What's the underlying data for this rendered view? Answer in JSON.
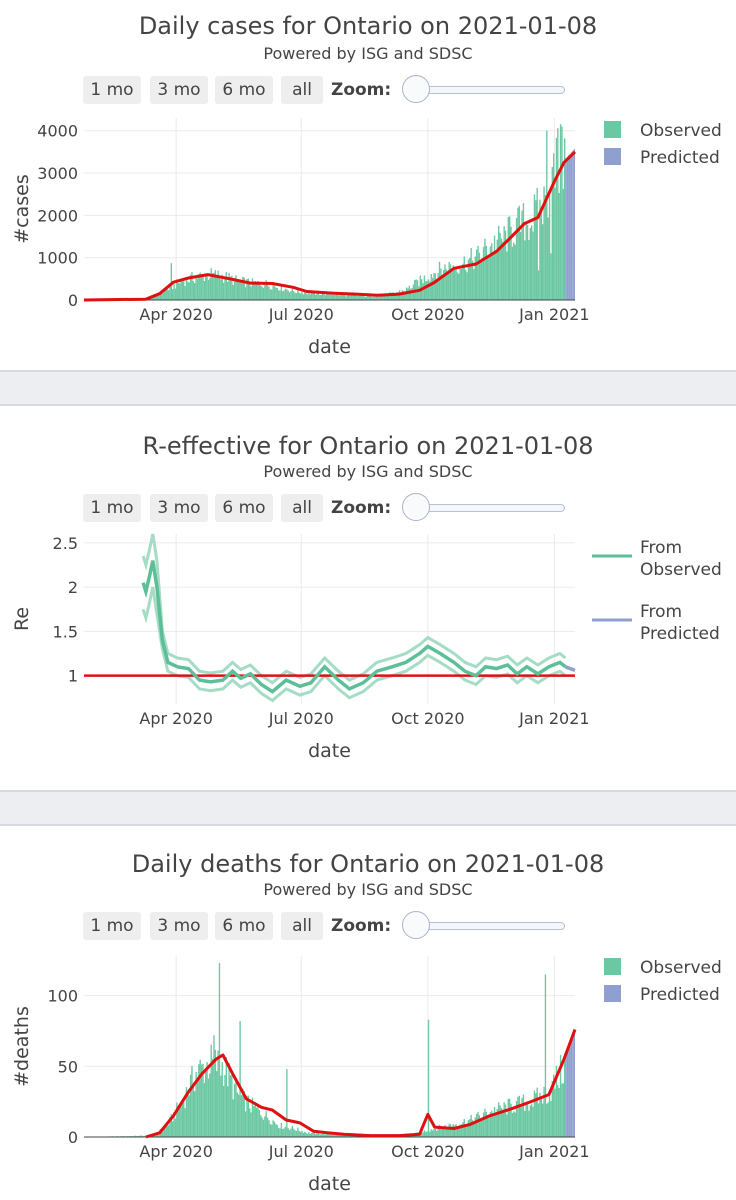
{
  "range_buttons": [
    "1 mo",
    "3 mo",
    "6 mo",
    "all"
  ],
  "zoom_label": "Zoom:",
  "subtitle": "Powered by ISG and SDSC",
  "colors": {
    "observed": "#6cc8a3",
    "predicted": "#8f9fcf",
    "fit": "#e01010",
    "re_line": "#5cbf97",
    "re_band": "#a4dcc4"
  },
  "chart_data": [
    {
      "type": "bar",
      "title": "Daily cases for Ontario on 2021-01-08",
      "xlabel": "date",
      "ylabel": "#cases",
      "x_ticks": [
        "Apr 2020",
        "Jul 2020",
        "Oct 2020",
        "Jan 2021"
      ],
      "y_ticks": [
        0,
        1000,
        2000,
        3000,
        4000
      ],
      "ylim": [
        0,
        4300
      ],
      "x_start": "2020-01-25",
      "x_end": "2021-01-16",
      "legend": [
        "Observed",
        "Predicted"
      ],
      "legend_position": "top-right",
      "observed_trend": [
        [
          "2020-01-25",
          0
        ],
        [
          "2020-03-01",
          5
        ],
        [
          "2020-03-15",
          60
        ],
        [
          "2020-03-25",
          250
        ],
        [
          "2020-04-05",
          450
        ],
        [
          "2020-04-15",
          540
        ],
        [
          "2020-04-25",
          600
        ],
        [
          "2020-05-05",
          560
        ],
        [
          "2020-05-15",
          450
        ],
        [
          "2020-05-25",
          400
        ],
        [
          "2020-06-05",
          380
        ],
        [
          "2020-06-15",
          300
        ],
        [
          "2020-06-25",
          210
        ],
        [
          "2020-07-05",
          170
        ],
        [
          "2020-07-15",
          150
        ],
        [
          "2020-07-25",
          140
        ],
        [
          "2020-08-05",
          110
        ],
        [
          "2020-08-15",
          90
        ],
        [
          "2020-08-25",
          105
        ],
        [
          "2020-09-05",
          150
        ],
        [
          "2020-09-15",
          250
        ],
        [
          "2020-09-25",
          450
        ],
        [
          "2020-10-05",
          650
        ],
        [
          "2020-10-15",
          780
        ],
        [
          "2020-10-25",
          850
        ],
        [
          "2020-11-05",
          1000
        ],
        [
          "2020-11-15",
          1300
        ],
        [
          "2020-11-25",
          1450
        ],
        [
          "2020-12-05",
          1750
        ],
        [
          "2020-12-15",
          1900
        ],
        [
          "2020-12-25",
          2300
        ],
        [
          "2021-01-01",
          3000
        ],
        [
          "2021-01-08",
          3400
        ]
      ],
      "spikes": [
        [
          "2020-03-28",
          870
        ],
        [
          "2020-12-26",
          4000
        ],
        [
          "2021-01-03",
          4060
        ],
        [
          "2021-01-06",
          4100
        ]
      ],
      "dips": [
        [
          "2020-12-20",
          700
        ],
        [
          "2020-12-29",
          1100
        ]
      ],
      "predicted_from": "2021-01-09",
      "predicted_trend": [
        [
          "2021-01-09",
          3350
        ],
        [
          "2021-01-16",
          3600
        ]
      ],
      "fit_line": [
        [
          "2020-01-25",
          0
        ],
        [
          "2020-03-10",
          20
        ],
        [
          "2020-03-20",
          150
        ],
        [
          "2020-03-30",
          420
        ],
        [
          "2020-04-10",
          520
        ],
        [
          "2020-04-24",
          600
        ],
        [
          "2020-05-10",
          500
        ],
        [
          "2020-05-25",
          400
        ],
        [
          "2020-06-10",
          390
        ],
        [
          "2020-06-25",
          300
        ],
        [
          "2020-07-05",
          200
        ],
        [
          "2020-07-25",
          160
        ],
        [
          "2020-08-10",
          140
        ],
        [
          "2020-08-25",
          110
        ],
        [
          "2020-09-10",
          140
        ],
        [
          "2020-09-25",
          230
        ],
        [
          "2020-10-05",
          400
        ],
        [
          "2020-10-20",
          750
        ],
        [
          "2020-11-05",
          850
        ],
        [
          "2020-11-20",
          1150
        ],
        [
          "2020-12-01",
          1500
        ],
        [
          "2020-12-10",
          1800
        ],
        [
          "2020-12-20",
          1950
        ],
        [
          "2021-01-01",
          2800
        ],
        [
          "2021-01-08",
          3250
        ],
        [
          "2021-01-16",
          3500
        ]
      ]
    },
    {
      "type": "line",
      "title": "R-effective for Ontario on 2021-01-08",
      "xlabel": "date",
      "ylabel": "Re",
      "x_ticks": [
        "Apr 2020",
        "Jul 2020",
        "Oct 2020",
        "Jan 2021"
      ],
      "y_ticks": [
        1,
        1.5,
        2,
        2.5
      ],
      "ylim": [
        0.68,
        2.6
      ],
      "x_start": "2020-01-25",
      "x_end": "2021-01-16",
      "legend": [
        "From Observed",
        "From Predicted"
      ],
      "legend_position": "top-right",
      "reference_line": 1,
      "re_observed": [
        [
          "2020-03-08",
          2.05
        ],
        [
          "2020-03-10",
          1.95
        ],
        [
          "2020-03-13",
          2.15
        ],
        [
          "2020-03-15",
          2.3
        ],
        [
          "2020-03-18",
          2.0
        ],
        [
          "2020-03-22",
          1.4
        ],
        [
          "2020-03-26",
          1.15
        ],
        [
          "2020-04-02",
          1.1
        ],
        [
          "2020-04-10",
          1.08
        ],
        [
          "2020-04-18",
          0.95
        ],
        [
          "2020-04-26",
          0.93
        ],
        [
          "2020-05-05",
          0.95
        ],
        [
          "2020-05-12",
          1.05
        ],
        [
          "2020-05-18",
          0.97
        ],
        [
          "2020-05-25",
          1.02
        ],
        [
          "2020-06-02",
          0.9
        ],
        [
          "2020-06-10",
          0.82
        ],
        [
          "2020-06-20",
          0.95
        ],
        [
          "2020-06-30",
          0.88
        ],
        [
          "2020-07-08",
          0.92
        ],
        [
          "2020-07-18",
          1.1
        ],
        [
          "2020-07-28",
          0.95
        ],
        [
          "2020-08-05",
          0.85
        ],
        [
          "2020-08-15",
          0.92
        ],
        [
          "2020-08-25",
          1.05
        ],
        [
          "2020-09-05",
          1.1
        ],
        [
          "2020-09-15",
          1.15
        ],
        [
          "2020-09-25",
          1.25
        ],
        [
          "2020-10-01",
          1.33
        ],
        [
          "2020-10-10",
          1.25
        ],
        [
          "2020-10-20",
          1.15
        ],
        [
          "2020-10-28",
          1.05
        ],
        [
          "2020-11-05",
          1.0
        ],
        [
          "2020-11-12",
          1.1
        ],
        [
          "2020-11-20",
          1.08
        ],
        [
          "2020-11-28",
          1.12
        ],
        [
          "2020-12-05",
          1.02
        ],
        [
          "2020-12-12",
          1.1
        ],
        [
          "2020-12-20",
          1.02
        ],
        [
          "2020-12-28",
          1.1
        ],
        [
          "2021-01-05",
          1.15
        ],
        [
          "2021-01-09",
          1.1
        ]
      ],
      "re_band_width": 0.1,
      "re_predicted": [
        [
          "2021-01-09",
          1.1
        ],
        [
          "2021-01-16",
          1.06
        ]
      ]
    },
    {
      "type": "bar",
      "title": "Daily deaths for Ontario on 2021-01-08",
      "xlabel": "date",
      "ylabel": "#deaths",
      "x_ticks": [
        "Apr 2020",
        "Jul 2020",
        "Oct 2020",
        "Jan 2021"
      ],
      "y_ticks": [
        0,
        50,
        100
      ],
      "ylim": [
        0,
        128
      ],
      "x_start": "2020-01-25",
      "x_end": "2021-01-16",
      "legend": [
        "Observed",
        "Predicted"
      ],
      "legend_position": "top-right",
      "observed_trend": [
        [
          "2020-01-25",
          0
        ],
        [
          "2020-03-15",
          1
        ],
        [
          "2020-03-25",
          8
        ],
        [
          "2020-04-05",
          25
        ],
        [
          "2020-04-15",
          45
        ],
        [
          "2020-04-25",
          52
        ],
        [
          "2020-05-05",
          50
        ],
        [
          "2020-05-15",
          30
        ],
        [
          "2020-05-25",
          22
        ],
        [
          "2020-06-05",
          15
        ],
        [
          "2020-06-15",
          8
        ],
        [
          "2020-06-25",
          6
        ],
        [
          "2020-07-05",
          3
        ],
        [
          "2020-07-20",
          2
        ],
        [
          "2020-08-10",
          1
        ],
        [
          "2020-09-01",
          1
        ],
        [
          "2020-09-20",
          2
        ],
        [
          "2020-10-01",
          5
        ],
        [
          "2020-10-15",
          8
        ],
        [
          "2020-11-01",
          12
        ],
        [
          "2020-11-15",
          18
        ],
        [
          "2020-12-01",
          22
        ],
        [
          "2020-12-15",
          25
        ],
        [
          "2020-12-28",
          32
        ],
        [
          "2021-01-08",
          50
        ]
      ],
      "spikes": [
        [
          "2020-05-02",
          123
        ],
        [
          "2020-05-17",
          82
        ],
        [
          "2020-04-28",
          72
        ],
        [
          "2020-10-01",
          83
        ],
        [
          "2020-12-25",
          115
        ],
        [
          "2020-06-20",
          48
        ]
      ],
      "predicted_from": "2021-01-09",
      "predicted_trend": [
        [
          "2021-01-09",
          60
        ],
        [
          "2021-01-16",
          75
        ]
      ],
      "fit_line": [
        [
          "2020-03-10",
          0
        ],
        [
          "2020-03-20",
          3
        ],
        [
          "2020-03-30",
          15
        ],
        [
          "2020-04-10",
          32
        ],
        [
          "2020-04-20",
          45
        ],
        [
          "2020-04-30",
          55
        ],
        [
          "2020-05-05",
          58
        ],
        [
          "2020-05-12",
          45
        ],
        [
          "2020-05-22",
          27
        ],
        [
          "2020-06-02",
          21
        ],
        [
          "2020-06-10",
          19
        ],
        [
          "2020-06-20",
          12
        ],
        [
          "2020-06-30",
          10
        ],
        [
          "2020-07-10",
          4
        ],
        [
          "2020-07-20",
          3
        ],
        [
          "2020-08-01",
          2
        ],
        [
          "2020-08-20",
          1
        ],
        [
          "2020-09-10",
          1
        ],
        [
          "2020-09-25",
          2
        ],
        [
          "2020-10-01",
          16
        ],
        [
          "2020-10-06",
          7
        ],
        [
          "2020-10-20",
          6
        ],
        [
          "2020-11-01",
          9
        ],
        [
          "2020-11-15",
          15
        ],
        [
          "2020-12-01",
          20
        ],
        [
          "2020-12-15",
          25
        ],
        [
          "2020-12-28",
          30
        ],
        [
          "2021-01-08",
          55
        ],
        [
          "2021-01-16",
          76
        ]
      ]
    }
  ]
}
